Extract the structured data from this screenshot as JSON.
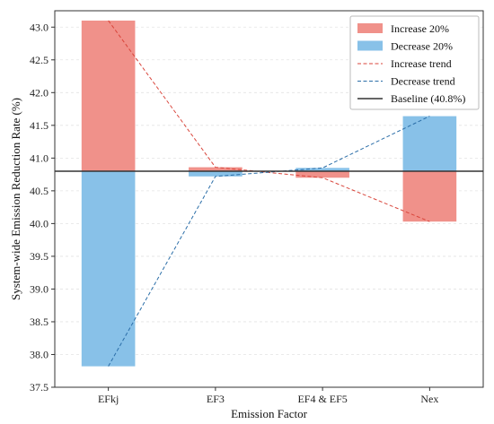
{
  "chart_data": {
    "type": "bar",
    "title": "",
    "xlabel": "Emission Factor",
    "ylabel": "System-wide Emission Reduction Rate (%)",
    "categories": [
      "EFkj",
      "EF3",
      "EF4 & EF5",
      "Nex"
    ],
    "baseline": 40.8,
    "ylim": [
      37.5,
      43.25
    ],
    "yticks": [
      "37.5",
      "38.0",
      "38.5",
      "39.0",
      "39.5",
      "40.0",
      "40.5",
      "41.0",
      "41.5",
      "42.0",
      "42.5",
      "43.0"
    ],
    "grid": "horizontal dashed",
    "legend_position": "top-right",
    "series": [
      {
        "name": "Increase 20%",
        "values": [
          43.1,
          40.86,
          40.7,
          40.03
        ],
        "color": "#f0918a"
      },
      {
        "name": "Decrease 20%",
        "values": [
          37.82,
          40.72,
          40.85,
          41.64
        ],
        "color": "#88c1e8"
      }
    ],
    "trend_lines": [
      {
        "name": "Increase trend",
        "values": [
          43.1,
          40.86,
          40.7,
          40.03
        ],
        "color": "#d9453b",
        "style": "dashed"
      },
      {
        "name": "Decrease trend",
        "values": [
          37.82,
          40.72,
          40.85,
          41.64
        ],
        "color": "#2b6ea8",
        "style": "dashed"
      }
    ],
    "baseline_line": {
      "name": "Baseline (40.8%)",
      "color": "#333333"
    }
  }
}
